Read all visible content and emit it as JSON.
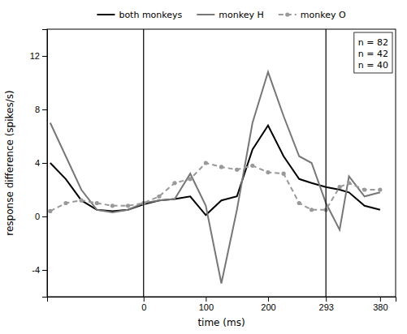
{
  "chart_data": {
    "type": "line",
    "xlabel": "time (ms)",
    "ylabel": "response difference (spikes/s)",
    "x": [
      -150,
      -125,
      -100,
      -75,
      -50,
      -25,
      0,
      25,
      50,
      75,
      100,
      125,
      150,
      175,
      200,
      225,
      250,
      270,
      293,
      315,
      330,
      355,
      380
    ],
    "series": [
      {
        "name": "both monkeys",
        "color": "#000000",
        "line_style": "solid",
        "values": [
          4.0,
          2.8,
          1.2,
          0.5,
          0.4,
          0.5,
          0.9,
          1.2,
          1.3,
          1.5,
          0.1,
          1.2,
          1.5,
          5.0,
          6.8,
          4.5,
          2.8,
          2.5,
          2.2,
          2.0,
          1.8,
          0.8,
          0.5
        ]
      },
      {
        "name": "monkey H",
        "color": "#777777",
        "line_style": "solid",
        "values": [
          7.0,
          4.5,
          2.0,
          0.5,
          0.3,
          0.5,
          1.0,
          1.2,
          1.3,
          3.2,
          0.8,
          -5.0,
          0.5,
          7.0,
          10.8,
          7.5,
          4.5,
          4.0,
          1.0,
          -1.0,
          3.0,
          1.5,
          1.8
        ]
      },
      {
        "name": "monkey O",
        "color": "#999999",
        "line_style": "dashed",
        "marker": "circle",
        "values": [
          0.4,
          1.0,
          1.2,
          1.0,
          0.8,
          0.8,
          1.0,
          1.5,
          2.5,
          2.8,
          4.0,
          3.7,
          3.5,
          3.8,
          3.3,
          3.2,
          1.0,
          0.5,
          0.5,
          2.2,
          2.5,
          2.0,
          2.0
        ]
      }
    ],
    "xlim": [
      -155,
      405
    ],
    "xticks": [
      0,
      100,
      200,
      293,
      380
    ],
    "ylim": [
      -6,
      14
    ],
    "yticks": [
      -4,
      0,
      4,
      8,
      12
    ],
    "vlines": [
      0,
      293
    ],
    "annotations": [
      "n = 82",
      "n = 42",
      "n = 40"
    ],
    "grid": false,
    "legend": "top"
  }
}
